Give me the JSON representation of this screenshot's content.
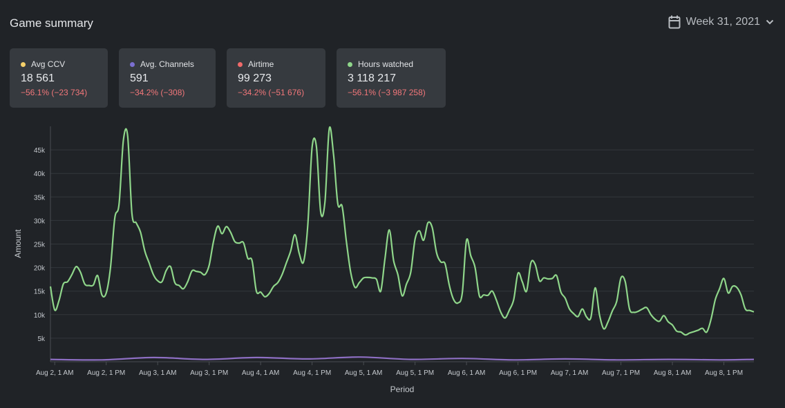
{
  "header": {
    "title": "Game summary",
    "period_label": "Week 31, 2021"
  },
  "cards": [
    {
      "label": "Avg CCV",
      "value": "18 561",
      "delta": "−56.1% (−23 734)",
      "color": "#f5d06a"
    },
    {
      "label": "Avg. Channels",
      "value": "591",
      "delta": "−34.2% (−308)",
      "color": "#7b6fd1"
    },
    {
      "label": "Airtime",
      "value": "99 273",
      "delta": "−34.2% (−51 676)",
      "color": "#f06a6a"
    },
    {
      "label": "Hours watched",
      "value": "3 118 217",
      "delta": "−56.1% (−3 987 258)",
      "color": "#8fd68a"
    }
  ],
  "chart_data": {
    "type": "line",
    "xlabel": "Period",
    "ylabel": "Amount",
    "x_tick_labels": [
      "Aug 2, 1 AM",
      "Aug 2, 1 PM",
      "Aug 3, 1 AM",
      "Aug 3, 1 PM",
      "Aug 4, 1 AM",
      "Aug 4, 1 PM",
      "Aug 5, 1 AM",
      "Aug 5, 1 PM",
      "Aug 6, 1 AM",
      "Aug 6, 1 PM",
      "Aug 7, 1 AM",
      "Aug 7, 1 PM",
      "Aug 8, 1 AM",
      "Aug 8, 1 PM"
    ],
    "y_tick_labels": [
      "5k",
      "10k",
      "15k",
      "20k",
      "25k",
      "30k",
      "35k",
      "40k",
      "45k"
    ],
    "y_ticks": [
      5000,
      10000,
      15000,
      20000,
      25000,
      30000,
      35000,
      40000,
      45000
    ],
    "ylim": [
      0,
      50000
    ],
    "grid": true,
    "series": [
      {
        "name": "Hours watched",
        "color": "#8fd68a",
        "points": [
          [
            "2021-08-02T00:00",
            16000
          ],
          [
            "2021-08-02T01:00",
            11000
          ],
          [
            "2021-08-02T02:00",
            13000
          ],
          [
            "2021-08-02T03:00",
            16500
          ],
          [
            "2021-08-02T04:00",
            17000
          ],
          [
            "2021-08-02T05:00",
            18500
          ],
          [
            "2021-08-02T06:00",
            20200
          ],
          [
            "2021-08-02T07:00",
            19000
          ],
          [
            "2021-08-02T08:00",
            16500
          ],
          [
            "2021-08-02T09:00",
            16200
          ],
          [
            "2021-08-02T10:00",
            16300
          ],
          [
            "2021-08-02T11:00",
            18300
          ],
          [
            "2021-08-02T12:00",
            14200
          ],
          [
            "2021-08-02T13:00",
            14600
          ],
          [
            "2021-08-02T14:00",
            20000
          ],
          [
            "2021-08-02T15:00",
            30500
          ],
          [
            "2021-08-02T16:00",
            33500
          ],
          [
            "2021-08-02T17:00",
            47000
          ],
          [
            "2021-08-02T18:00",
            48000
          ],
          [
            "2021-08-02T19:00",
            31500
          ],
          [
            "2021-08-02T20:00",
            29500
          ],
          [
            "2021-08-02T21:00",
            27500
          ],
          [
            "2021-08-02T22:00",
            23500
          ],
          [
            "2021-08-02T23:00",
            21000
          ],
          [
            "2021-08-03T00:00",
            18500
          ],
          [
            "2021-08-03T01:00",
            17200
          ],
          [
            "2021-08-03T02:00",
            17000
          ],
          [
            "2021-08-03T03:00",
            19400
          ],
          [
            "2021-08-03T04:00",
            20200
          ],
          [
            "2021-08-03T05:00",
            16800
          ],
          [
            "2021-08-03T06:00",
            16200
          ],
          [
            "2021-08-03T07:00",
            15500
          ],
          [
            "2021-08-03T08:00",
            17000
          ],
          [
            "2021-08-03T09:00",
            19300
          ],
          [
            "2021-08-03T10:00",
            19200
          ],
          [
            "2021-08-03T11:00",
            19000
          ],
          [
            "2021-08-03T12:00",
            18500
          ],
          [
            "2021-08-03T13:00",
            20500
          ],
          [
            "2021-08-03T14:00",
            25500
          ],
          [
            "2021-08-03T15:00",
            28800
          ],
          [
            "2021-08-03T16:00",
            27200
          ],
          [
            "2021-08-03T17:00",
            28700
          ],
          [
            "2021-08-03T18:00",
            27500
          ],
          [
            "2021-08-03T19:00",
            25500
          ],
          [
            "2021-08-03T20:00",
            25200
          ],
          [
            "2021-08-03T21:00",
            25300
          ],
          [
            "2021-08-03T22:00",
            22000
          ],
          [
            "2021-08-03T23:00",
            21500
          ],
          [
            "2021-08-04T00:00",
            15000
          ],
          [
            "2021-08-04T01:00",
            14800
          ],
          [
            "2021-08-04T02:00",
            13800
          ],
          [
            "2021-08-04T03:00",
            14500
          ],
          [
            "2021-08-04T04:00",
            16000
          ],
          [
            "2021-08-04T05:00",
            16800
          ],
          [
            "2021-08-04T06:00",
            18500
          ],
          [
            "2021-08-04T07:00",
            21000
          ],
          [
            "2021-08-04T08:00",
            23500
          ],
          [
            "2021-08-04T09:00",
            27000
          ],
          [
            "2021-08-04T10:00",
            23000
          ],
          [
            "2021-08-04T11:00",
            21200
          ],
          [
            "2021-08-04T12:00",
            29000
          ],
          [
            "2021-08-04T13:00",
            45500
          ],
          [
            "2021-08-04T14:00",
            45700
          ],
          [
            "2021-08-04T15:00",
            31800
          ],
          [
            "2021-08-04T16:00",
            34000
          ],
          [
            "2021-08-04T17:00",
            49500
          ],
          [
            "2021-08-04T18:00",
            44000
          ],
          [
            "2021-08-04T19:00",
            33500
          ],
          [
            "2021-08-04T20:00",
            33000
          ],
          [
            "2021-08-04T21:00",
            25500
          ],
          [
            "2021-08-04T22:00",
            19000
          ],
          [
            "2021-08-04T23:00",
            15800
          ],
          [
            "2021-08-05T00:00",
            16800
          ],
          [
            "2021-08-05T01:00",
            17800
          ],
          [
            "2021-08-05T02:00",
            17900
          ],
          [
            "2021-08-05T03:00",
            17800
          ],
          [
            "2021-08-05T04:00",
            17500
          ],
          [
            "2021-08-05T05:00",
            15000
          ],
          [
            "2021-08-05T06:00",
            22000
          ],
          [
            "2021-08-05T07:00",
            28000
          ],
          [
            "2021-08-05T08:00",
            21500
          ],
          [
            "2021-08-05T09:00",
            18500
          ],
          [
            "2021-08-05T10:00",
            14000
          ],
          [
            "2021-08-05T11:00",
            16500
          ],
          [
            "2021-08-05T12:00",
            19000
          ],
          [
            "2021-08-05T13:00",
            26000
          ],
          [
            "2021-08-05T14:00",
            27800
          ],
          [
            "2021-08-05T15:00",
            25800
          ],
          [
            "2021-08-05T16:00",
            29500
          ],
          [
            "2021-08-05T17:00",
            28500
          ],
          [
            "2021-08-05T18:00",
            23200
          ],
          [
            "2021-08-05T19:00",
            21200
          ],
          [
            "2021-08-05T20:00",
            20800
          ],
          [
            "2021-08-05T21:00",
            16200
          ],
          [
            "2021-08-05T22:00",
            13200
          ],
          [
            "2021-08-05T23:00",
            12500
          ],
          [
            "2021-08-06T00:00",
            14500
          ],
          [
            "2021-08-06T01:00",
            25800
          ],
          [
            "2021-08-06T02:00",
            22500
          ],
          [
            "2021-08-06T03:00",
            20000
          ],
          [
            "2021-08-06T04:00",
            14000
          ],
          [
            "2021-08-06T05:00",
            14200
          ],
          [
            "2021-08-06T06:00",
            14100
          ],
          [
            "2021-08-06T07:00",
            15000
          ],
          [
            "2021-08-06T08:00",
            13000
          ],
          [
            "2021-08-06T09:00",
            10500
          ],
          [
            "2021-08-06T10:00",
            9300
          ],
          [
            "2021-08-06T11:00",
            11000
          ],
          [
            "2021-08-06T12:00",
            13200
          ],
          [
            "2021-08-06T13:00",
            18800
          ],
          [
            "2021-08-06T14:00",
            17000
          ],
          [
            "2021-08-06T15:00",
            15000
          ],
          [
            "2021-08-06T16:00",
            21000
          ],
          [
            "2021-08-06T17:00",
            20700
          ],
          [
            "2021-08-06T18:00",
            17200
          ],
          [
            "2021-08-06T19:00",
            17800
          ],
          [
            "2021-08-06T20:00",
            17600
          ],
          [
            "2021-08-06T21:00",
            17700
          ],
          [
            "2021-08-06T22:00",
            18300
          ],
          [
            "2021-08-06T23:00",
            14800
          ],
          [
            "2021-08-07T00:00",
            13500
          ],
          [
            "2021-08-07T01:00",
            11200
          ],
          [
            "2021-08-07T02:00",
            10200
          ],
          [
            "2021-08-07T03:00",
            9600
          ],
          [
            "2021-08-07T04:00",
            11200
          ],
          [
            "2021-08-07T05:00",
            9500
          ],
          [
            "2021-08-07T06:00",
            9400
          ],
          [
            "2021-08-07T07:00",
            15700
          ],
          [
            "2021-08-07T08:00",
            10000
          ],
          [
            "2021-08-07T09:00",
            7000
          ],
          [
            "2021-08-07T10:00",
            8500
          ],
          [
            "2021-08-07T11:00",
            10800
          ],
          [
            "2021-08-07T12:00",
            12800
          ],
          [
            "2021-08-07T13:00",
            17800
          ],
          [
            "2021-08-07T14:00",
            17000
          ],
          [
            "2021-08-07T15:00",
            11200
          ],
          [
            "2021-08-07T16:00",
            10500
          ],
          [
            "2021-08-07T17:00",
            10700
          ],
          [
            "2021-08-07T18:00",
            11200
          ],
          [
            "2021-08-07T19:00",
            11500
          ],
          [
            "2021-08-07T20:00",
            10000
          ],
          [
            "2021-08-07T21:00",
            9000
          ],
          [
            "2021-08-07T22:00",
            8600
          ],
          [
            "2021-08-07T23:00",
            9800
          ],
          [
            "2021-08-08T00:00",
            8500
          ],
          [
            "2021-08-08T01:00",
            7800
          ],
          [
            "2021-08-08T02:00",
            6500
          ],
          [
            "2021-08-08T03:00",
            6300
          ],
          [
            "2021-08-08T04:00",
            5700
          ],
          [
            "2021-08-08T05:00",
            6100
          ],
          [
            "2021-08-08T06:00",
            6400
          ],
          [
            "2021-08-08T07:00",
            6700
          ],
          [
            "2021-08-08T08:00",
            7100
          ],
          [
            "2021-08-08T09:00",
            6300
          ],
          [
            "2021-08-08T10:00",
            9000
          ],
          [
            "2021-08-08T11:00",
            13200
          ],
          [
            "2021-08-08T12:00",
            15500
          ],
          [
            "2021-08-08T13:00",
            17700
          ],
          [
            "2021-08-08T14:00",
            14600
          ],
          [
            "2021-08-08T15:00",
            16000
          ],
          [
            "2021-08-08T16:00",
            15800
          ],
          [
            "2021-08-08T17:00",
            14200
          ],
          [
            "2021-08-08T18:00",
            11200
          ],
          [
            "2021-08-08T19:00",
            10900
          ],
          [
            "2021-08-08T20:00",
            10600
          ]
        ]
      },
      {
        "name": "Avg. Channels",
        "color": "#8e6fc4",
        "points": [
          [
            "2021-08-02T00:00",
            500
          ],
          [
            "2021-08-02T12:00",
            400
          ],
          [
            "2021-08-03T00:00",
            900
          ],
          [
            "2021-08-03T12:00",
            500
          ],
          [
            "2021-08-04T00:00",
            900
          ],
          [
            "2021-08-04T12:00",
            600
          ],
          [
            "2021-08-05T00:00",
            1000
          ],
          [
            "2021-08-05T12:00",
            500
          ],
          [
            "2021-08-06T00:00",
            700
          ],
          [
            "2021-08-06T12:00",
            400
          ],
          [
            "2021-08-07T00:00",
            600
          ],
          [
            "2021-08-07T12:00",
            400
          ],
          [
            "2021-08-08T00:00",
            500
          ],
          [
            "2021-08-08T12:00",
            400
          ],
          [
            "2021-08-08T20:00",
            500
          ]
        ]
      }
    ]
  }
}
